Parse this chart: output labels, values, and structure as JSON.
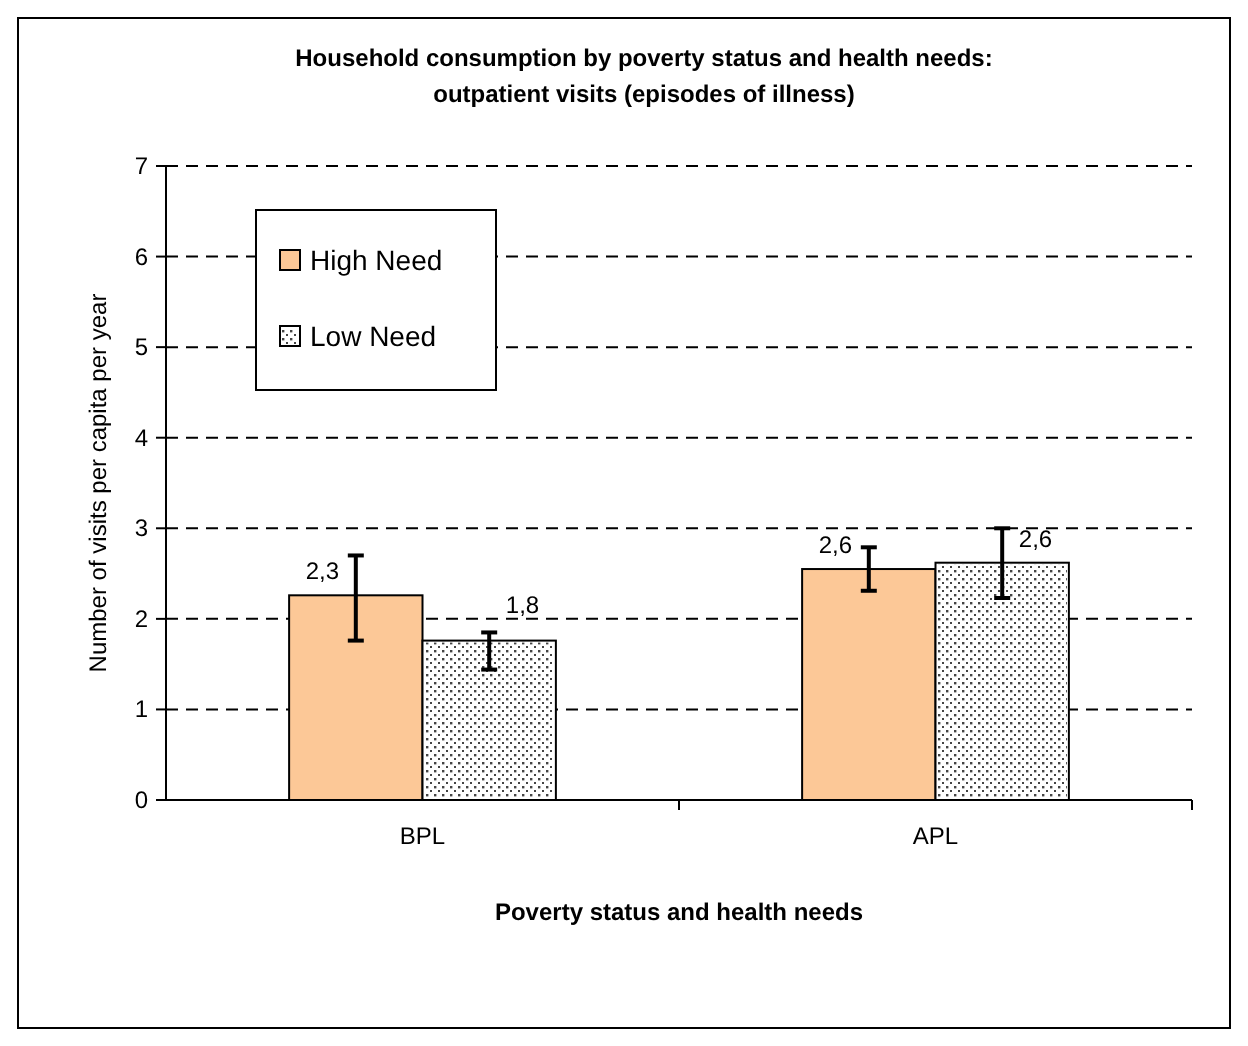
{
  "chart_data": {
    "type": "bar",
    "title": "Household consumption by poverty status and health needs: outpatient visits (episodes of illness)",
    "xlabel": "Poverty status and health needs",
    "ylabel": "Number of visits per capita per year",
    "categories": [
      "BPL",
      "APL"
    ],
    "series": [
      {
        "name": "High Need",
        "color": "#fcc897",
        "values": [
          2.26,
          2.55
        ],
        "errors": [
          [
            1.76,
            2.7
          ],
          [
            2.31,
            2.79
          ]
        ],
        "value_labels": [
          "2,3",
          "2,6"
        ]
      },
      {
        "name": "Low Need",
        "color": "#ffffff",
        "values": [
          1.76,
          2.62
        ],
        "errors": [
          [
            1.44,
            1.85
          ],
          [
            2.23,
            3.0
          ]
        ],
        "value_labels": [
          "1,8",
          "2,6"
        ]
      }
    ],
    "ylim": [
      0,
      7
    ],
    "yticks": [
      0,
      1,
      2,
      3,
      4,
      5,
      6,
      7
    ],
    "grid": "y",
    "legend": "top left"
  }
}
